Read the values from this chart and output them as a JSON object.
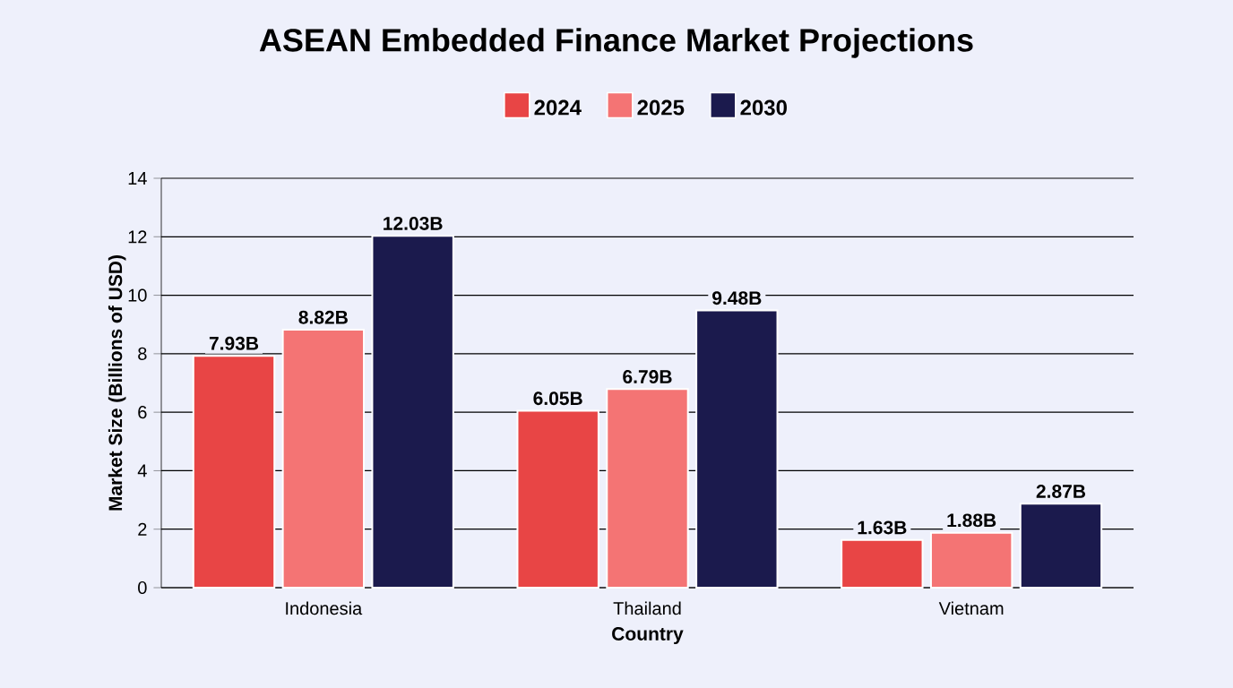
{
  "chart_data": {
    "type": "bar",
    "title": "ASEAN Embedded Finance Market Projections",
    "xlabel": "Country",
    "ylabel": "Market Size (Billions of USD)",
    "categories": [
      "Indonesia",
      "Thailand",
      "Vietnam"
    ],
    "series": [
      {
        "name": "2024",
        "color": "#e84545",
        "values": [
          7.93,
          6.05,
          1.63
        ],
        "value_labels": [
          "7.93B",
          "6.05B",
          "1.63B"
        ]
      },
      {
        "name": "2025",
        "color": "#f47474",
        "values": [
          8.82,
          6.79,
          1.88
        ],
        "value_labels": [
          "8.82B",
          "6.79B",
          "1.88B"
        ]
      },
      {
        "name": "2030",
        "color": "#1b1a4d",
        "values": [
          12.03,
          9.48,
          2.87
        ],
        "value_labels": [
          "12.03B",
          "9.48B",
          "2.87B"
        ]
      }
    ],
    "ylim": [
      0,
      14
    ],
    "yticks": [
      0,
      2,
      4,
      6,
      8,
      10,
      12,
      14
    ],
    "grid": "y",
    "legend": "top"
  }
}
